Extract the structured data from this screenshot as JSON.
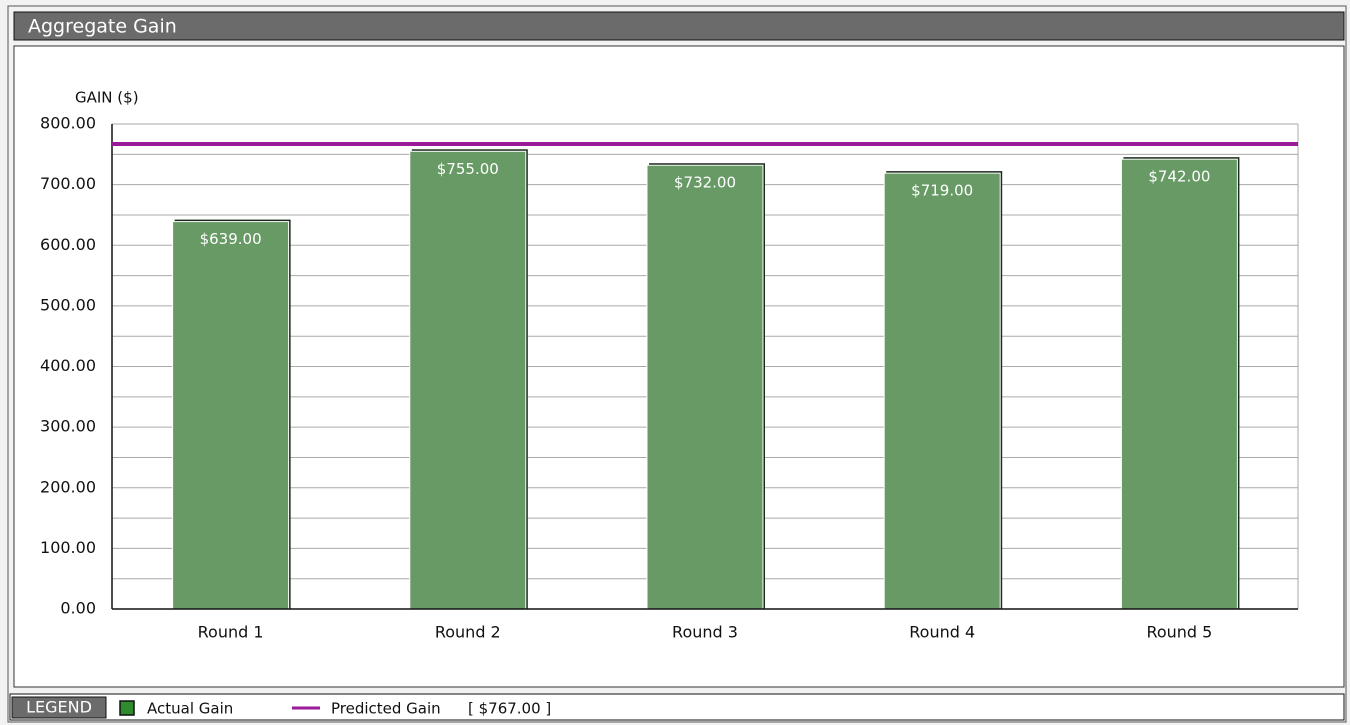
{
  "window_title": "Aggregate Gain",
  "legend_title": "LEGEND",
  "chart_data": {
    "type": "bar",
    "y_label": "GAIN ($)",
    "categories": [
      "Round 1",
      "Round 2",
      "Round 3",
      "Round 4",
      "Round 5"
    ],
    "series": [
      {
        "name": "Actual Gain",
        "color": "#679a65",
        "values": [
          639,
          755,
          732,
          719,
          742
        ],
        "value_labels": [
          "$639.00",
          "$755.00",
          "$732.00",
          "$719.00",
          "$742.00"
        ]
      }
    ],
    "reference_line": {
      "name": "Predicted Gain",
      "value": 767,
      "value_label": "[ $767.00 ]",
      "color": "#9a1a9a"
    },
    "ylim": [
      0,
      800
    ],
    "yticks": [
      {
        "value": 0,
        "label": "0.00"
      },
      {
        "value": 100,
        "label": "100.00"
      },
      {
        "value": 200,
        "label": "200.00"
      },
      {
        "value": 300,
        "label": "300.00"
      },
      {
        "value": 400,
        "label": "400.00"
      },
      {
        "value": 500,
        "label": "500.00"
      },
      {
        "value": 600,
        "label": "600.00"
      },
      {
        "value": 700,
        "label": "700.00"
      },
      {
        "value": 800,
        "label": "800.00"
      }
    ],
    "yminorticks": [
      50,
      150,
      250,
      350,
      450,
      550,
      650,
      750
    ],
    "grid": true
  }
}
